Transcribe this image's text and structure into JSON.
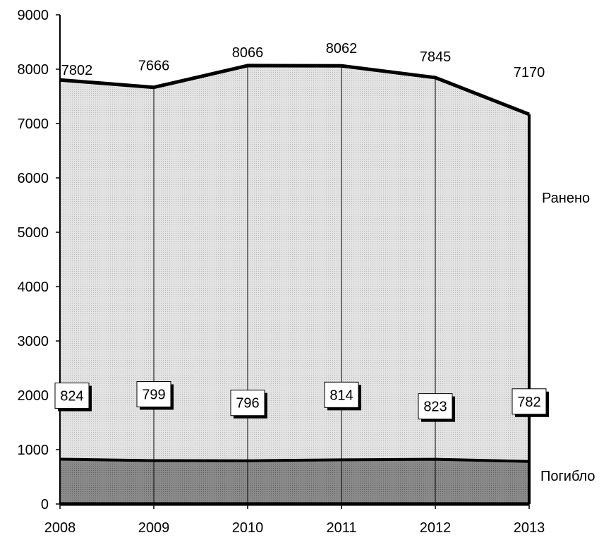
{
  "chart_data": {
    "type": "area",
    "x": [
      "2008",
      "2009",
      "2010",
      "2011",
      "2012",
      "2013"
    ],
    "ylim": [
      0,
      9000
    ],
    "yticks": [
      "0",
      "1000",
      "2000",
      "3000",
      "4000",
      "5000",
      "6000",
      "7000",
      "8000",
      "9000"
    ],
    "grid": "vertical",
    "series": [
      {
        "name": "Ранено",
        "values": [
          7802,
          7666,
          8066,
          8062,
          7845,
          7170
        ],
        "labels": [
          "7802",
          "7666",
          "8066",
          "8062",
          "7845",
          "7170"
        ],
        "color": "#d4d4d4"
      },
      {
        "name": "Погибло",
        "values": [
          824,
          799,
          796,
          814,
          823,
          782
        ],
        "labels": [
          "824",
          "799",
          "796",
          "814",
          "823",
          "782"
        ],
        "color": "#7f7f7f"
      }
    ]
  }
}
